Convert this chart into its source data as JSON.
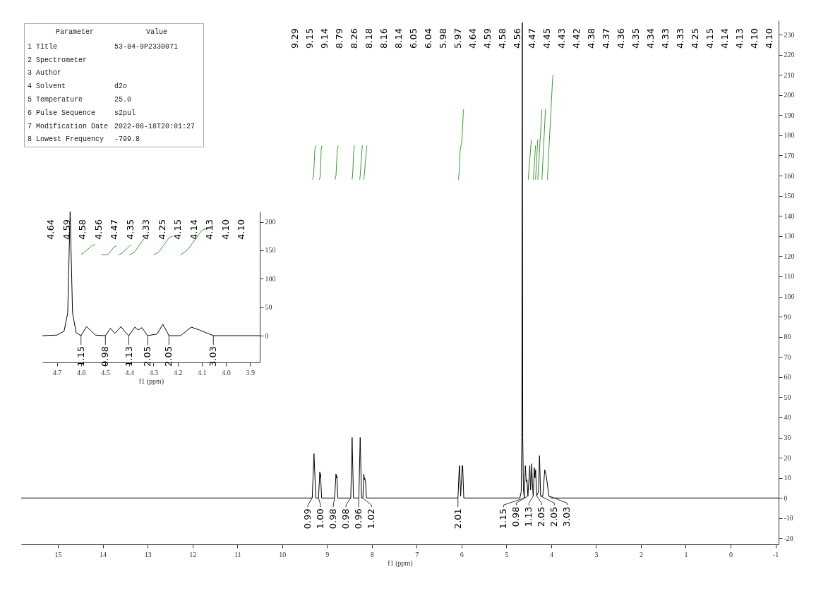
{
  "chart_data": [
    {
      "type": "other",
      "cell_labels": [
        [
          "Parameter",
          "Value"
        ],
        [
          "1 Title",
          "53-84-9P2330071"
        ],
        [
          "2 Spectrometer",
          null
        ],
        [
          "3 Author",
          null
        ],
        [
          "4 Solvent",
          "d2o"
        ],
        [
          "5 Temperature",
          "25.0"
        ],
        [
          "6 Pulse Sequence",
          "s2pul"
        ],
        [
          "7 Modification Date",
          "2022-08-18T20:01:27"
        ],
        [
          "8 Lowest Frequency",
          "-799.8"
        ]
      ]
    },
    {
      "type": "line",
      "xlabel": "f1 (ppm)",
      "xlim": [
        15.82,
        -1.07
      ],
      "xticks": [
        15,
        14,
        13,
        12,
        11,
        10,
        9,
        8,
        7,
        6,
        5,
        4,
        3,
        2,
        1,
        0,
        -1
      ],
      "ylim": [
        -23,
        237
      ],
      "yticks": [
        -20,
        -10,
        0,
        10,
        20,
        30,
        40,
        50,
        60,
        70,
        80,
        90,
        100,
        110,
        120,
        130,
        140,
        150,
        160,
        170,
        180,
        190,
        200,
        210,
        220,
        230
      ],
      "series": [
        {
          "color": "#000000",
          "x": [
            15.82,
            9.33,
            9.29,
            9.25,
            9.19,
            9.16,
            9.155,
            9.145,
            9.12,
            8.83,
            8.8,
            8.79,
            8.78,
            8.76,
            8.47,
            8.44,
            8.41,
            8.29,
            8.26,
            8.23,
            8.2,
            8.18,
            8.165,
            8.16,
            8.14,
            8.12,
            6.08,
            6.05,
            6.045,
            6.02,
            5.985,
            5.975,
            5.95,
            4.7,
            4.67,
            4.655,
            4.645,
            4.635,
            4.62,
            4.6,
            4.577,
            4.557,
            4.54,
            4.52,
            4.478,
            4.46,
            4.434,
            4.421,
            4.402,
            4.377,
            4.363,
            4.348,
            4.324,
            4.285,
            4.261,
            4.236,
            4.188,
            4.144,
            4.11,
            4.052,
            4.0,
            -1.07
          ],
          "values": [
            0,
            0,
            22,
            0,
            0,
            13,
            10,
            12,
            0,
            0,
            12,
            10,
            11,
            0,
            0,
            30,
            0,
            0,
            30,
            0,
            0,
            12,
            9,
            10,
            8,
            0,
            0,
            16,
            16,
            1,
            16,
            16,
            0,
            0,
            3,
            30,
            236,
            30,
            4,
            0,
            16,
            8,
            9,
            1,
            16,
            4,
            17,
            8,
            1,
            15,
            10,
            14,
            1,
            3,
            21,
            1,
            1,
            14,
            11,
            1,
            0,
            0
          ]
        },
        {
          "type": "line",
          "color": "#3d9b35",
          "x": [
            9.32,
            9.3,
            9.27,
            9.25
          ],
          "values": [
            158,
            160,
            173,
            175
          ]
        },
        {
          "type": "line",
          "color": "#3d9b35",
          "x": [
            9.17,
            9.15,
            9.13,
            9.11
          ],
          "values": [
            158,
            160,
            173,
            175
          ]
        },
        {
          "type": "line",
          "color": "#3d9b35",
          "x": [
            8.82,
            8.8,
            8.77,
            8.75
          ],
          "values": [
            158,
            160,
            173,
            175
          ]
        },
        {
          "type": "line",
          "color": "#3d9b35",
          "x": [
            8.44,
            8.43,
            8.4,
            8.39
          ],
          "values": [
            158,
            160,
            173,
            175
          ]
        },
        {
          "type": "line",
          "color": "#3d9b35",
          "x": [
            8.27,
            8.26,
            8.22,
            8.21
          ],
          "values": [
            158,
            160,
            173,
            175
          ]
        },
        {
          "type": "line",
          "color": "#3d9b35",
          "x": [
            8.18,
            8.17,
            8.12,
            8.11
          ],
          "values": [
            158,
            160,
            173,
            175
          ]
        },
        {
          "type": "line",
          "color": "#3d9b35",
          "x": [
            6.07,
            6.05,
            6.03,
            6.0,
            5.98,
            5.96,
            5.95
          ],
          "values": [
            158,
            162,
            173,
            176,
            182,
            192,
            193
          ]
        },
        {
          "type": "line",
          "color": "#3d9b35",
          "x": [
            4.514,
            4.443
          ],
          "values": [
            158,
            178
          ]
        },
        {
          "type": "line",
          "color": "#3d9b35",
          "x": [
            4.399,
            4.35
          ],
          "values": [
            158,
            175
          ]
        },
        {
          "type": "line",
          "color": "#3d9b35",
          "x": [
            4.35,
            4.3
          ],
          "values": [
            158,
            178
          ]
        },
        {
          "type": "line",
          "color": "#3d9b35",
          "x": [
            4.3,
            4.207
          ],
          "values": [
            158,
            193
          ]
        },
        {
          "type": "line",
          "color": "#3d9b35",
          "x": [
            4.207,
            4.128
          ],
          "values": [
            158,
            193
          ]
        },
        {
          "type": "line",
          "color": "#3d9b35",
          "x": [
            4.084,
            4.07,
            3.97,
            3.956
          ],
          "values": [
            158,
            165,
            208,
            210
          ]
        }
      ],
      "annotations": [
        {
          "text": "0.99",
          "x": 9.33,
          "y": 0
        },
        {
          "text": "1.00",
          "x": 9.19,
          "y": 0
        },
        {
          "text": "0.98",
          "x": 8.83,
          "y": 0
        },
        {
          "text": "0.98",
          "x": 8.47,
          "y": 0
        },
        {
          "text": "0.96",
          "x": 8.29,
          "y": 0
        },
        {
          "text": "1.02",
          "x": 8.2,
          "y": 0
        },
        {
          "text": "2.01",
          "x": 6.08,
          "y": 0
        },
        {
          "text": "1.15",
          "x": 4.6,
          "y": 0
        },
        {
          "text": "0.98",
          "x": 4.52,
          "y": 1
        },
        {
          "text": "1.13",
          "x": 4.402,
          "y": 1
        },
        {
          "text": "2.05",
          "x": 4.324,
          "y": 1
        },
        {
          "text": "2.05",
          "x": 4.236,
          "y": 1
        },
        {
          "text": "3.03",
          "x": 4.052,
          "y": 1
        },
        "9.29",
        "9.15",
        "9.14",
        "8.79",
        "8.26",
        "8.18",
        "8.16",
        "8.14",
        "6.05",
        "6.04",
        "5.98",
        "5.97",
        "4.64",
        "4.59",
        "4.58",
        "4.56",
        "4.47",
        "4.45",
        "4.43",
        "4.42",
        "4.38",
        "4.37",
        "4.36",
        "4.35",
        "4.34",
        "4.33",
        "4.33",
        "4.25",
        "4.15",
        "4.14",
        "4.13",
        "4.10",
        "4.10"
      ]
    },
    {
      "type": "line",
      "xlabel": "f1 (ppm)",
      "xlim": [
        4.76,
        3.86
      ],
      "xticks": [
        4.7,
        4.6,
        4.5,
        4.4,
        4.3,
        4.2,
        4.1,
        {
          "value": 4,
          "label": "4.0"
        },
        3.9
      ],
      "ylim": [
        -47,
        218
      ],
      "yticks": [
        0,
        50,
        100,
        150,
        200
      ],
      "series": [
        {
          "color": "#000000",
          "x": [
            4.76,
            4.7,
            4.67,
            4.655,
            4.645,
            4.635,
            4.62,
            4.6,
            4.577,
            4.557,
            4.54,
            4.499,
            4.478,
            4.46,
            4.434,
            4.421,
            4.402,
            4.377,
            4.363,
            4.348,
            4.324,
            4.285,
            4.261,
            4.236,
            4.188,
            4.144,
            4.11,
            4.052,
            3.86
          ],
          "values": [
            0,
            1,
            8,
            40,
            218,
            40,
            5,
            0,
            16,
            8,
            1,
            0,
            13,
            4,
            16,
            8,
            0,
            15,
            10,
            14,
            0,
            3,
            20,
            0,
            0,
            15,
            10,
            0,
            0
          ]
        },
        {
          "type": "line",
          "color": "#3d9b35",
          "x": [
            4.6,
            4.59,
            4.555,
            4.541
          ],
          "values": [
            143,
            145,
            158,
            160
          ]
        },
        {
          "type": "line",
          "color": "#3d9b35",
          "x": [
            4.516,
            4.49,
            4.465,
            4.453
          ],
          "values": [
            142,
            142,
            155,
            158
          ]
        },
        {
          "type": "line",
          "color": "#3d9b35",
          "x": [
            4.446,
            4.43,
            4.4,
            4.392
          ],
          "values": [
            142,
            145,
            157,
            160
          ]
        },
        {
          "type": "line",
          "color": "#3d9b35",
          "x": [
            4.4,
            4.38,
            4.34,
            4.33
          ],
          "values": [
            142,
            146,
            170,
            174
          ]
        },
        {
          "type": "line",
          "color": "#3d9b35",
          "x": [
            4.3,
            4.28,
            4.235,
            4.22
          ],
          "values": [
            142,
            146,
            172,
            175
          ]
        },
        {
          "type": "line",
          "color": "#3d9b35",
          "x": [
            4.188,
            4.16,
            4.1,
            4.052
          ],
          "values": [
            142,
            150,
            185,
            193
          ]
        }
      ],
      "annotations": [
        {
          "text": "1.15",
          "x": 4.6,
          "y": 0
        },
        {
          "text": "0.98",
          "x": 4.499,
          "y": 0
        },
        {
          "text": "1.13",
          "x": 4.402,
          "y": 0
        },
        {
          "text": "2.05",
          "x": 4.324,
          "y": 0
        },
        {
          "text": "2.05",
          "x": 4.236,
          "y": 0
        },
        {
          "text": "3.03",
          "x": 4.052,
          "y": 0
        },
        "4.64",
        "4.59",
        "4.58",
        "4.56",
        "4.47",
        "4.35",
        "4.33",
        "4.25",
        "4.15",
        "4.14",
        "4.13",
        "4.10",
        "4.10"
      ]
    }
  ]
}
